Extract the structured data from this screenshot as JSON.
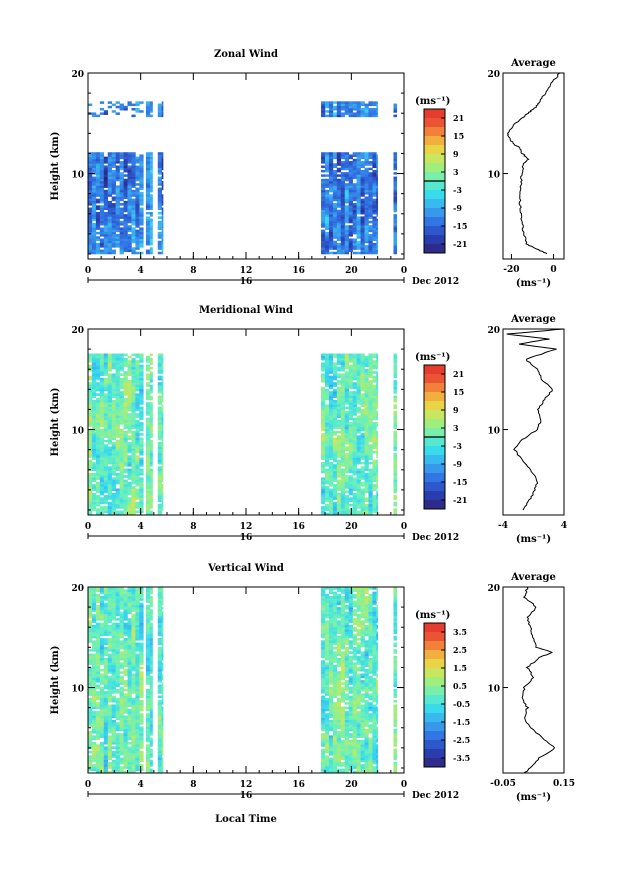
{
  "figure": {
    "x_axis_title": "Local Time",
    "units": "(ms⁻¹)",
    "average_title": "Average",
    "date_label": "16",
    "month_label": "Dec 2012"
  },
  "chart_data": [
    {
      "type": "heatmap",
      "title": "Zonal Wind",
      "xlabel": "Local Time",
      "ylabel": "Height (km)",
      "xlim": [
        0,
        24
      ],
      "ylim": [
        1.5,
        20
      ],
      "x_ticks": [
        "0",
        "4",
        "8",
        "12",
        "16",
        "20",
        "0"
      ],
      "y_ticks": [
        "10",
        "20"
      ],
      "date_marker": {
        "x": 12,
        "label": "16"
      },
      "colorbar": {
        "label": "(ms⁻¹)",
        "range": [
          -24,
          24
        ],
        "ticks": [
          "21",
          "15",
          "9",
          "3",
          "-3",
          "-9",
          "-15",
          "-21"
        ],
        "contour_level": 0
      },
      "data_columns": [
        [
          0.0,
          4.2
        ],
        [
          4.4,
          4.9
        ],
        [
          5.3,
          5.7
        ],
        [
          17.7,
          22.0
        ],
        [
          23.2,
          23.45
        ]
      ],
      "height_range": [
        2.0,
        17.0
      ],
      "approx_mean_value": -13,
      "average_profile": {
        "title": "Average",
        "xlabel": "(ms⁻¹)",
        "xlim": [
          -24,
          5
        ],
        "x_ticks": [
          "-20",
          "0"
        ],
        "heights": [
          2,
          2.5,
          3,
          4,
          5,
          6,
          7,
          8,
          9,
          10,
          11,
          11.5,
          12,
          12.5,
          13,
          13.5,
          14,
          15,
          16,
          16.5,
          17,
          18,
          19,
          20
        ],
        "values": [
          -3,
          -8,
          -13,
          -14,
          -15,
          -15.5,
          -16,
          -16,
          -15.5,
          -15,
          -14,
          -12,
          -15,
          -16,
          -19,
          -21,
          -21.5,
          -18,
          -12,
          -9,
          -7,
          -4,
          -1,
          3
        ]
      }
    },
    {
      "type": "heatmap",
      "title": "Meridional Wind",
      "xlabel": "Local Time",
      "ylabel": "Height (km)",
      "xlim": [
        0,
        24
      ],
      "ylim": [
        1.5,
        20
      ],
      "x_ticks": [
        "0",
        "4",
        "8",
        "12",
        "16",
        "20",
        "0"
      ],
      "y_ticks": [
        "10",
        "20"
      ],
      "date_marker": {
        "x": 12,
        "label": "16"
      },
      "colorbar": {
        "label": "(ms⁻¹)",
        "range": [
          -24,
          24
        ],
        "ticks": [
          "21",
          "15",
          "9",
          "3",
          "-3",
          "-9",
          "-15",
          "-21"
        ],
        "contour_level": 0
      },
      "data_columns": [
        [
          0.0,
          4.2
        ],
        [
          4.4,
          4.9
        ],
        [
          5.3,
          5.7
        ],
        [
          17.7,
          22.0
        ],
        [
          23.2,
          23.45
        ]
      ],
      "height_range": [
        1.5,
        17.5
      ],
      "approx_mean_value": 0,
      "average_profile": {
        "title": "Average",
        "xlabel": "(ms⁻¹)",
        "xlim": [
          -4,
          4
        ],
        "x_ticks": [
          "-4",
          "4"
        ],
        "heights": [
          2,
          3,
          4,
          5,
          6,
          7,
          8,
          9,
          10,
          11,
          12,
          13,
          14,
          15,
          16,
          17,
          18,
          18.5,
          19,
          19.5,
          20
        ],
        "values": [
          -1.5,
          -0.5,
          0.2,
          0.5,
          -0.5,
          -1.5,
          -2.5,
          -1.5,
          0.5,
          1,
          0.5,
          1.5,
          2.5,
          1,
          0.5,
          -1,
          3,
          -2,
          2,
          -3.5,
          4
        ]
      }
    },
    {
      "type": "heatmap",
      "title": "Vertical Wind",
      "xlabel": "Local Time",
      "ylabel": "Height (km)",
      "xlim": [
        0,
        24
      ],
      "ylim": [
        1.5,
        20
      ],
      "x_ticks": [
        "0",
        "4",
        "8",
        "12",
        "16",
        "20",
        "0"
      ],
      "y_ticks": [
        "10",
        "20"
      ],
      "date_marker": {
        "x": 12,
        "label": "16"
      },
      "colorbar": {
        "label": "(ms⁻¹)",
        "range": [
          -4,
          4
        ],
        "ticks": [
          "3.5",
          "2.5",
          "1.5",
          "0.5",
          "-0.5",
          "-1.5",
          "-2.5",
          "-3.5"
        ],
        "contour_level": null
      },
      "data_columns": [
        [
          0.0,
          4.2
        ],
        [
          4.4,
          4.9
        ],
        [
          5.3,
          5.7
        ],
        [
          17.7,
          22.0
        ],
        [
          23.2,
          23.45
        ]
      ],
      "height_range": [
        1.5,
        20
      ],
      "approx_mean_value": 0,
      "average_profile": {
        "title": "Average",
        "xlabel": "(ms⁻¹)",
        "xlim": [
          -0.05,
          0.15
        ],
        "x_ticks": [
          "-0.05",
          "0.15"
        ],
        "heights": [
          1.5,
          2,
          3,
          4,
          5,
          6,
          7,
          8,
          9,
          10,
          11,
          12,
          13,
          13.5,
          14,
          15,
          16,
          17,
          18,
          19,
          20
        ],
        "values": [
          0.02,
          0.04,
          0.07,
          0.12,
          0.08,
          0.04,
          0.02,
          0.03,
          0.01,
          0.02,
          0.05,
          0.03,
          0.07,
          0.11,
          0.06,
          0.05,
          0.04,
          0.03,
          0.06,
          0.02,
          0.03
        ]
      }
    }
  ]
}
